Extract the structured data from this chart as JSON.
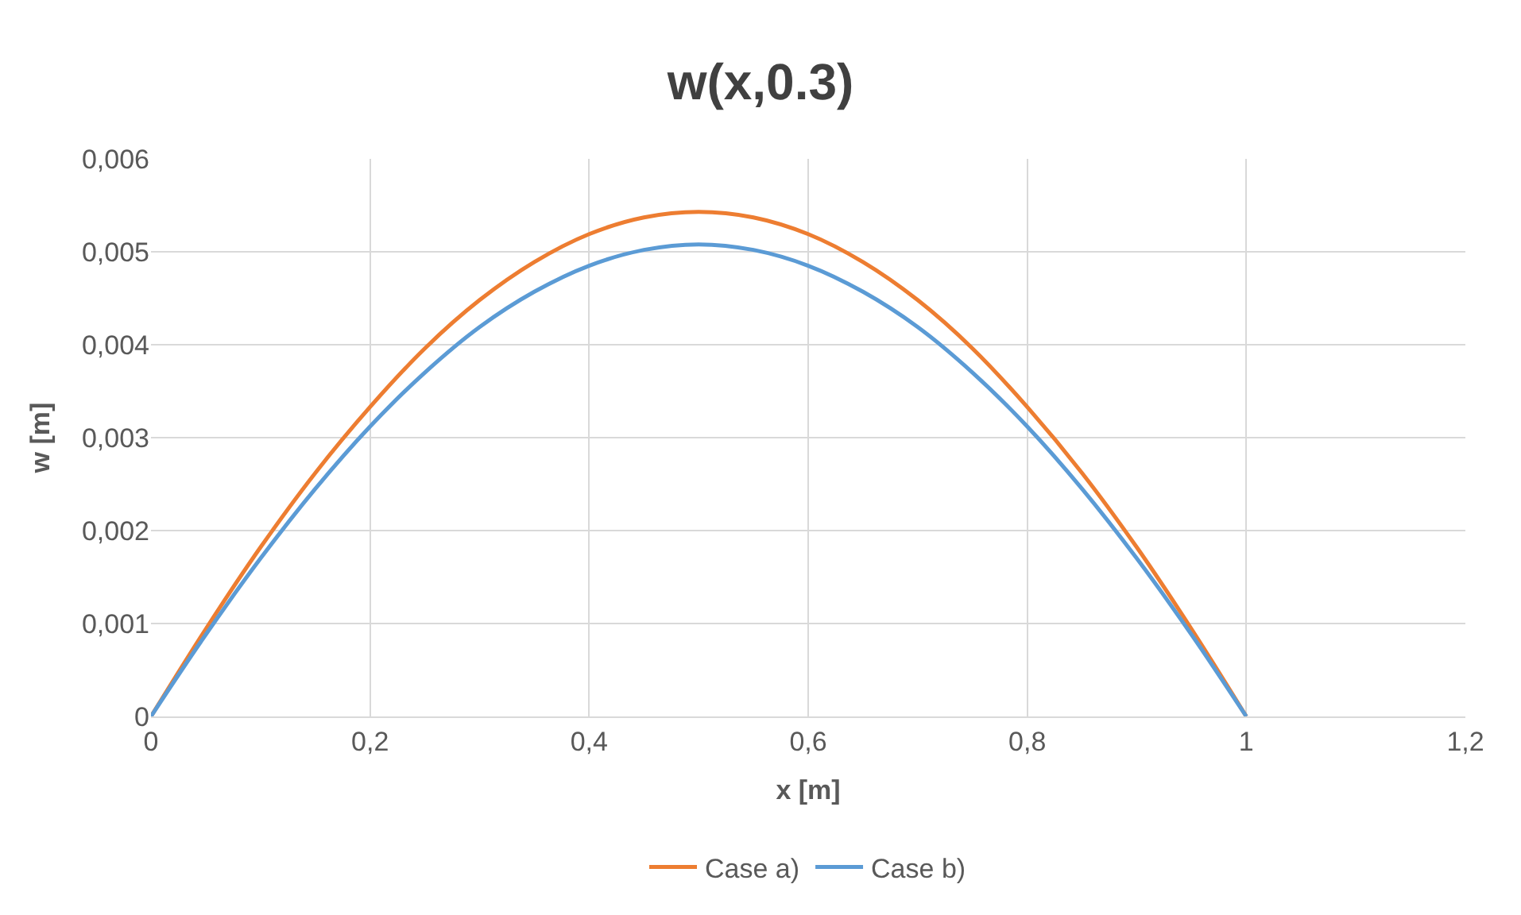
{
  "chart_data": {
    "type": "line",
    "title": "w(x,0.3)",
    "xlabel": "x [m]",
    "ylabel": "w [m]",
    "x": [
      0,
      0.05,
      0.1,
      0.15,
      0.2,
      0.25,
      0.3,
      0.35,
      0.4,
      0.45,
      0.5,
      0.55,
      0.6,
      0.65,
      0.7,
      0.75,
      0.8,
      0.85,
      0.9,
      0.95,
      1
    ],
    "series": [
      {
        "name": "Case a)",
        "color": "#ed7d31",
        "values": [
          0,
          0.00094,
          0.00182,
          0.00262,
          0.00333,
          0.00396,
          0.00448,
          0.00489,
          0.00519,
          0.00537,
          0.00543,
          0.00537,
          0.00519,
          0.00489,
          0.00448,
          0.00396,
          0.00333,
          0.00262,
          0.00182,
          0.00094,
          0
        ]
      },
      {
        "name": "Case b)",
        "color": "#5b9bd5",
        "values": [
          0,
          0.00088,
          0.0017,
          0.00245,
          0.00312,
          0.0037,
          0.00419,
          0.00457,
          0.00485,
          0.00502,
          0.00508,
          0.00502,
          0.00485,
          0.00457,
          0.00419,
          0.0037,
          0.00312,
          0.00245,
          0.0017,
          0.00088,
          0
        ]
      }
    ],
    "xlim": [
      0,
      1.2
    ],
    "xticks": [
      0,
      {
        "value": 0.2,
        "label": "0,2"
      },
      {
        "value": 0.4,
        "label": "0,4"
      },
      {
        "value": 0.6,
        "label": "0,6"
      },
      {
        "value": 0.8,
        "label": "0,8"
      },
      1,
      {
        "value": 1.2,
        "label": "1,2"
      }
    ],
    "ylim": [
      0,
      0.006
    ],
    "yticks": [
      0,
      {
        "value": 0.001,
        "label": "0,001"
      },
      {
        "value": 0.002,
        "label": "0,002"
      },
      {
        "value": 0.003,
        "label": "0,003"
      },
      {
        "value": 0.004,
        "label": "0,004"
      },
      {
        "value": 0.005,
        "label": "0,005"
      },
      {
        "value": 0.006,
        "label": "0,006"
      }
    ],
    "grid": true,
    "legend": "bottom",
    "marker": "none",
    "line_style": "solid"
  }
}
